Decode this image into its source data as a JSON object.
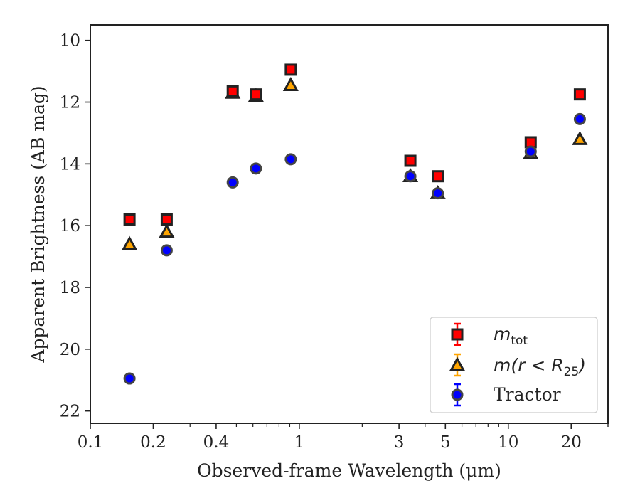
{
  "chart_data": {
    "type": "scatter",
    "xlabel": "Observed-frame Wavelength (μm)",
    "ylabel": "Apparent Brightness (AB mag)",
    "x_scale": "log",
    "xlim": [
      0.1,
      30
    ],
    "ylim": [
      22.4,
      9.5
    ],
    "y_inverted": true,
    "x_ticks": [
      0.1,
      0.2,
      0.4,
      1,
      3,
      5,
      10,
      20
    ],
    "x_tick_labels": [
      "0.1",
      "0.2",
      "0.4",
      "1",
      "3",
      "5",
      "10",
      "20"
    ],
    "y_ticks": [
      10,
      12,
      14,
      16,
      18,
      20,
      22
    ],
    "y_tick_labels": [
      "10",
      "12",
      "14",
      "16",
      "18",
      "20",
      "22"
    ],
    "grid": false,
    "legend_position": "bottom-right",
    "series": [
      {
        "name": "m_tot",
        "legend_main": "m",
        "legend_sub": "tot",
        "marker": "square",
        "color": "#ff0000",
        "edge_color": "#222222",
        "x": [
          0.154,
          0.232,
          0.48,
          0.62,
          0.91,
          3.4,
          4.6,
          12.8,
          22.0
        ],
        "y": [
          15.8,
          15.8,
          11.65,
          11.75,
          10.95,
          13.9,
          14.4,
          13.3,
          11.75
        ]
      },
      {
        "name": "m(r<R_25)",
        "legend_main": "m(r < R",
        "legend_sub": "25",
        "legend_tail": ")",
        "marker": "triangle",
        "color": "#ffa500",
        "edge_color": "#222222",
        "x": [
          0.154,
          0.232,
          0.48,
          0.62,
          0.91,
          3.4,
          4.6,
          12.8,
          22.0
        ],
        "y": [
          16.6,
          16.2,
          11.7,
          11.8,
          11.45,
          14.4,
          14.95,
          13.65,
          13.2
        ]
      },
      {
        "name": "Tractor",
        "marker": "circle",
        "color": "#0000ff",
        "edge_color": "#444444",
        "x": [
          0.154,
          0.232,
          0.48,
          0.62,
          0.91,
          3.4,
          4.6,
          12.8,
          22.0
        ],
        "y": [
          20.95,
          16.8,
          14.6,
          14.15,
          13.85,
          14.4,
          14.95,
          13.6,
          12.55
        ]
      }
    ]
  }
}
